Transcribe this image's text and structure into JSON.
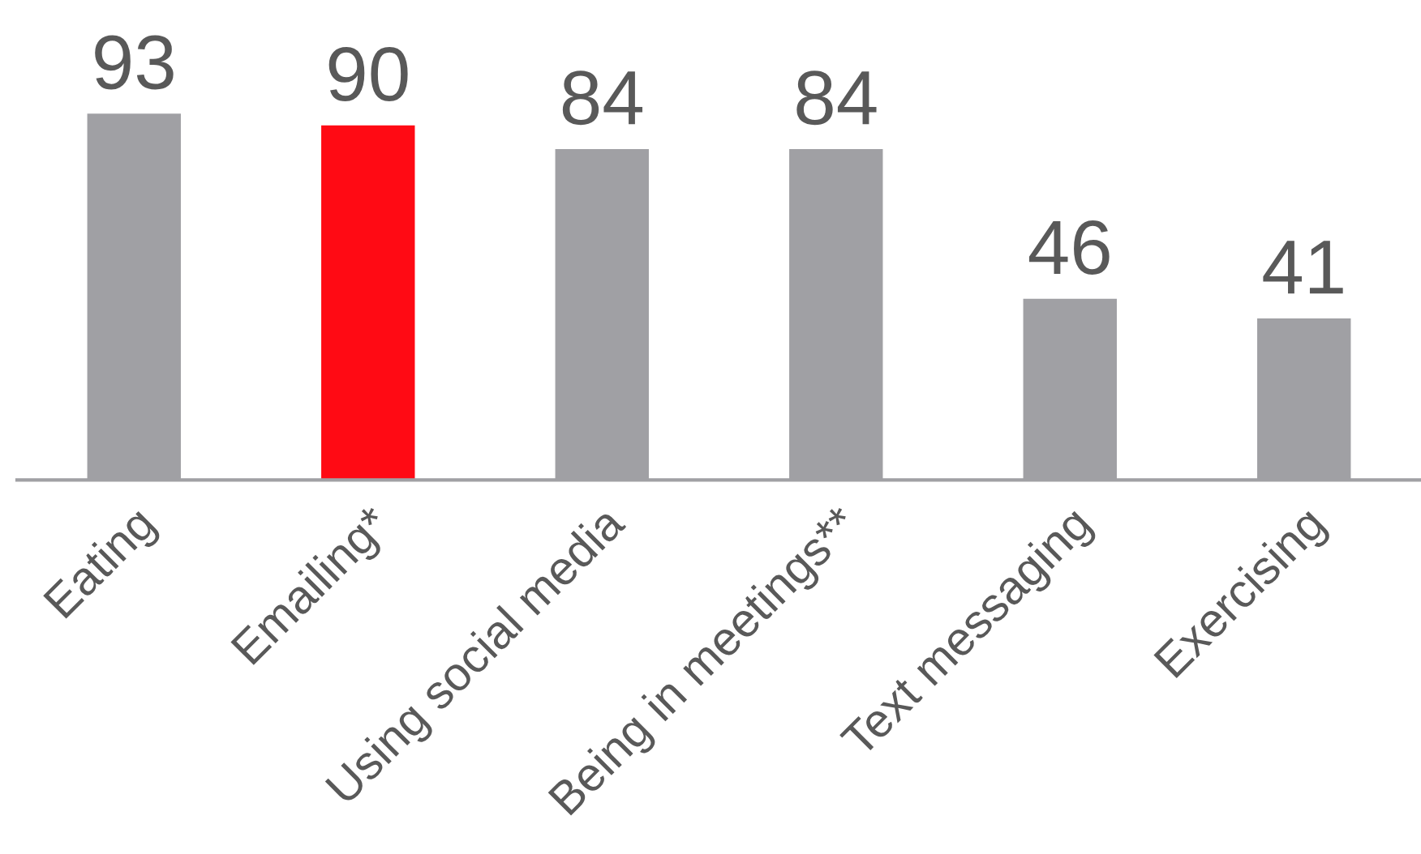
{
  "chart_data": {
    "type": "bar",
    "categories": [
      "Eating",
      "Emailing*",
      "Using social media",
      "Being in meetings**",
      "Text messaging",
      "Exercising"
    ],
    "values": [
      93,
      90,
      84,
      84,
      46,
      41
    ],
    "colors": [
      "#a0a0a4",
      "#ff0a14",
      "#a0a0a4",
      "#a0a0a4",
      "#a0a0a4",
      "#a0a0a4"
    ],
    "data_labels": true,
    "grid": false,
    "legend": false
  }
}
